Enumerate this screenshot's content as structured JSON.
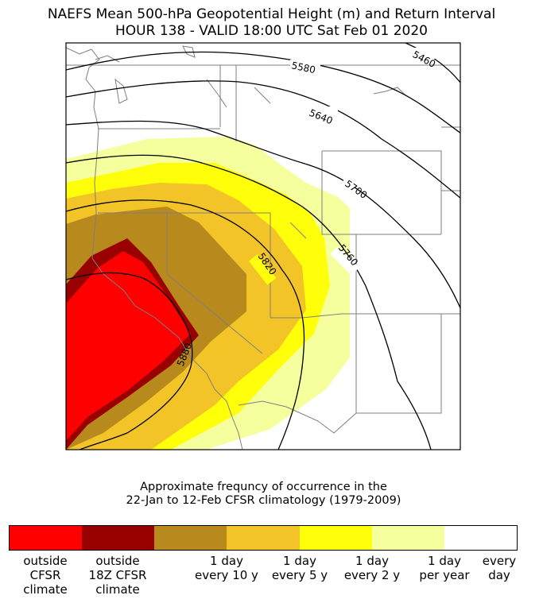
{
  "title": {
    "line1": "NAEFS Mean 500-hPa Geopotential Height (m) and Return Interval",
    "line2": "HOUR 138 - VALID 18:00 UTC Sat Feb 01 2020"
  },
  "map": {
    "contours": [
      {
        "value": 5460,
        "label": "5460"
      },
      {
        "value": 5580,
        "label": "5580"
      },
      {
        "value": 5640,
        "label": "5640"
      },
      {
        "value": 5700,
        "label": "5700"
      },
      {
        "value": 5760,
        "label": "5760"
      },
      {
        "value": 5820,
        "label": "5820"
      },
      {
        "value": 5880,
        "label": "5880"
      }
    ]
  },
  "caption": {
    "line1": "Approximate frequncy of occurrence in the",
    "line2": "22-Jan to 12-Feb CFSR climatology (1979-2009)"
  },
  "legend": {
    "swatches": [
      {
        "color": "#ff0000"
      },
      {
        "color": "#990000"
      },
      {
        "color": "#b8891c"
      },
      {
        "color": "#f2c428"
      },
      {
        "color": "#ffff0a"
      },
      {
        "color": "#f5ff9e"
      },
      {
        "color": "#ffffff"
      }
    ],
    "labels": [
      {
        "line1": "outside",
        "line2": "CFSR",
        "line3": "climate"
      },
      {
        "line1": "outside",
        "line2": "18Z CFSR",
        "line3": "climate"
      },
      {
        "line1": "1 day",
        "line2": "every 10 y"
      },
      {
        "line1": "1 day",
        "line2": "every 5 y"
      },
      {
        "line1": "1 day",
        "line2": "every 2 y"
      },
      {
        "line1": "1 day",
        "line2": "per year"
      },
      {
        "line1": "every",
        "line2": "day"
      }
    ]
  }
}
